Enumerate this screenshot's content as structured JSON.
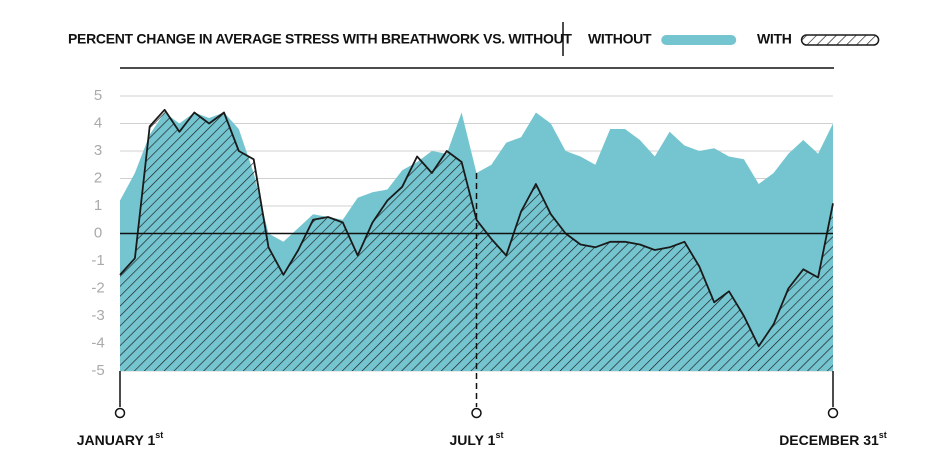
{
  "chart_data": {
    "type": "area",
    "title": "PERCENT CHANGE IN AVERAGE STRESS WITH BREATHWORK VS. WITHOUT",
    "categories": [
      "JANUARY 1st",
      null,
      null,
      null,
      null,
      null,
      null,
      null,
      null,
      null,
      null,
      null,
      null,
      null,
      null,
      null,
      null,
      null,
      null,
      null,
      null,
      null,
      null,
      null,
      "JULY 1st",
      null,
      null,
      null,
      null,
      null,
      null,
      null,
      null,
      null,
      null,
      null,
      null,
      null,
      null,
      null,
      null,
      null,
      null,
      null,
      null,
      null,
      null,
      null,
      "DECEMBER 31st"
    ],
    "series": [
      {
        "name": "WITHOUT",
        "color": "#74c5d0",
        "fill": "solid",
        "values": [
          1.2,
          2.2,
          3.6,
          4.4,
          4.0,
          4.4,
          4.2,
          4.4,
          3.8,
          2.2,
          0.0,
          -0.3,
          0.2,
          0.7,
          0.6,
          0.5,
          1.3,
          1.5,
          1.6,
          2.3,
          2.6,
          3.0,
          2.9,
          4.4,
          2.2,
          2.5,
          3.3,
          3.5,
          4.4,
          4.0,
          3.0,
          2.8,
          2.5,
          3.8,
          3.8,
          3.4,
          2.8,
          3.7,
          3.2,
          3.0,
          3.1,
          2.8,
          2.7,
          1.8,
          2.2,
          2.9,
          3.4,
          2.9,
          4.0
        ]
      },
      {
        "name": "WITH",
        "color": "#1a1a1a",
        "fill": "hatch",
        "values": [
          -1.5,
          -0.9,
          3.9,
          4.5,
          3.7,
          4.4,
          4.0,
          4.4,
          3.0,
          2.7,
          -0.5,
          -1.5,
          -0.6,
          0.5,
          0.6,
          0.4,
          -0.8,
          0.4,
          1.2,
          1.7,
          2.8,
          2.2,
          3.0,
          2.6,
          0.5,
          -0.2,
          -0.8,
          0.8,
          1.8,
          0.7,
          0.0,
          -0.4,
          -0.5,
          -0.3,
          -0.3,
          -0.4,
          -0.6,
          -0.5,
          -0.3,
          -1.2,
          -2.5,
          -2.1,
          -3.0,
          -4.1,
          -3.3,
          -2.0,
          -1.3,
          -1.6,
          1.1
        ]
      }
    ],
    "ylim": [
      -5,
      5
    ],
    "yticks": [
      -5,
      -4,
      -3,
      -2,
      -1,
      0,
      1,
      2,
      3,
      4,
      5
    ],
    "grid": true
  }
}
